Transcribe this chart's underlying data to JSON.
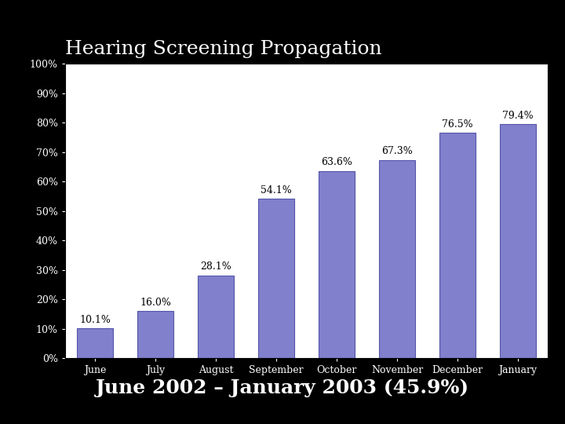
{
  "title": "Hearing Screening Propagation",
  "subtitle": "June 2002 – January 2003 (45.9%)",
  "categories": [
    "June",
    "July",
    "August",
    "September",
    "October",
    "November",
    "December",
    "January"
  ],
  "values": [
    10.1,
    16.0,
    28.1,
    54.1,
    63.6,
    67.3,
    76.5,
    79.4
  ],
  "labels": [
    "10.1%",
    "16.0%",
    "28.1%",
    "54.1%",
    "63.6%",
    "67.3%",
    "76.5%",
    "79.4%"
  ],
  "bar_color": "#8080cc",
  "bar_edgecolor": "#5555aa",
  "background_color": "#000000",
  "plot_bg_color": "#ffffff",
  "title_color": "#ffffff",
  "subtitle_color": "#ffffff",
  "label_color": "#000000",
  "ytick_labels": [
    "0%",
    "10%",
    "20%",
    "30%",
    "40%",
    "50%",
    "60%",
    "70%",
    "80%",
    "90%",
    "100%"
  ],
  "ytick_values": [
    0,
    10,
    20,
    30,
    40,
    50,
    60,
    70,
    80,
    90,
    100
  ],
  "ylim": [
    0,
    100
  ],
  "title_fontsize": 18,
  "subtitle_fontsize": 18,
  "label_fontsize": 9,
  "tick_fontsize": 9
}
